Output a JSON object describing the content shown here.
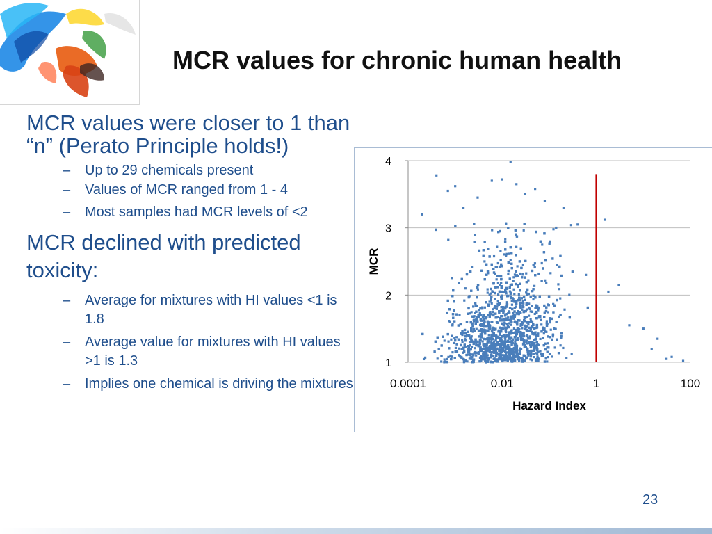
{
  "slide": {
    "title": "MCR values for chronic human health",
    "page_number": "23"
  },
  "body": {
    "point1": "MCR values were closer to 1 than “n” (Perato Principle holds!)",
    "sub1": "Up to 29 chemicals present",
    "sub2": "Values of MCR ranged from 1 - 4",
    "sub3": "Most samples had MCR levels of <2",
    "point2_line1": "MCR declined with predicted",
    "point2_line2": "toxicity:",
    "sub4": "Average for mixtures with HI values <1 is 1.8",
    "sub5": "Average value for mixtures with HI values >1 is 1.3",
    "sub6": "Implies one chemical is driving the mixtures",
    "dash": "–"
  },
  "colors": {
    "text_blue": "#1f4e8c",
    "point_blue": "#4a7ebb",
    "reference_line": "#c00000"
  },
  "chart_data": {
    "type": "scatter",
    "x_scale": "log",
    "xlim": [
      0.0001,
      100
    ],
    "ylim": [
      1,
      4
    ],
    "x_ticks": [
      "0.0001",
      "0.01",
      "1",
      "100"
    ],
    "y_ticks": [
      "1",
      "2",
      "3",
      "4"
    ],
    "xlabel": "Hazard Index",
    "ylabel": "MCR",
    "grid": "horizontal",
    "point_count_approx": 3000,
    "reference_line": {
      "x": 1,
      "y_range": [
        1,
        3.8
      ]
    },
    "points": [
      [
        0.0002,
        3.2
      ],
      [
        0.0004,
        3.78
      ],
      [
        0.0007,
        3.55
      ],
      [
        0.001,
        3.62
      ],
      [
        0.0015,
        3.3
      ],
      [
        0.003,
        3.45
      ],
      [
        0.006,
        3.7
      ],
      [
        0.01,
        3.72
      ],
      [
        0.015,
        3.98
      ],
      [
        0.02,
        3.65
      ],
      [
        0.03,
        3.5
      ],
      [
        0.05,
        3.58
      ],
      [
        0.08,
        3.4
      ],
      [
        0.2,
        3.3
      ],
      [
        0.4,
        3.05
      ],
      [
        0.6,
        2.3
      ],
      [
        1.5,
        3.12
      ],
      [
        1.8,
        2.05
      ],
      [
        3,
        2.15
      ],
      [
        5,
        1.55
      ],
      [
        10,
        1.5
      ],
      [
        15,
        1.2
      ],
      [
        20,
        1.35
      ],
      [
        30,
        1.05
      ],
      [
        40,
        1.08
      ],
      [
        70,
        1.02
      ]
    ],
    "summary": {
      "mean_mcr_hi_below_1": 1.8,
      "mean_mcr_hi_above_1": 1.3
    }
  }
}
